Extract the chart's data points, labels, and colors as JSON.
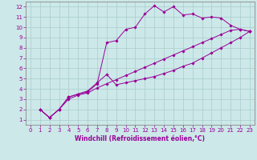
{
  "background_color": "#cce8e8",
  "grid_color": "#aacccc",
  "line_color": "#990099",
  "marker_color": "#990099",
  "xlabel": "Windchill (Refroidissement éolien,°C)",
  "xlim": [
    -0.5,
    23.5
  ],
  "ylim": [
    0.5,
    12.5
  ],
  "xticks": [
    0,
    1,
    2,
    3,
    4,
    5,
    6,
    7,
    8,
    9,
    10,
    11,
    12,
    13,
    14,
    15,
    16,
    17,
    18,
    19,
    20,
    21,
    22,
    23
  ],
  "yticks": [
    1,
    2,
    3,
    4,
    5,
    6,
    7,
    8,
    9,
    10,
    11,
    12
  ],
  "line1_x": [
    1,
    2,
    3,
    4,
    5,
    6,
    7,
    8,
    9,
    10,
    11,
    12,
    13,
    14,
    15,
    16,
    17,
    18,
    19,
    20,
    21,
    22,
    23
  ],
  "line1_y": [
    2.0,
    1.2,
    2.0,
    3.2,
    3.5,
    3.7,
    4.5,
    8.5,
    8.7,
    9.8,
    10.0,
    11.3,
    12.1,
    11.5,
    12.0,
    11.2,
    11.3,
    10.9,
    11.0,
    10.9,
    10.2,
    9.8,
    9.6
  ],
  "line2_x": [
    1,
    2,
    3,
    4,
    5,
    6,
    7,
    8,
    9,
    10,
    11,
    12,
    13,
    14,
    15,
    16,
    17,
    18,
    19,
    20,
    21,
    22,
    23
  ],
  "line2_y": [
    2.0,
    1.2,
    2.0,
    3.2,
    3.5,
    3.8,
    4.6,
    5.4,
    4.4,
    4.6,
    4.8,
    5.0,
    5.2,
    5.5,
    5.8,
    6.2,
    6.5,
    7.0,
    7.5,
    8.0,
    8.5,
    9.0,
    9.6
  ],
  "line3_x": [
    1,
    2,
    3,
    4,
    5,
    6,
    7,
    8,
    9,
    10,
    11,
    12,
    13,
    14,
    15,
    16,
    17,
    18,
    19,
    20,
    21,
    22,
    23
  ],
  "line3_y": [
    2.0,
    1.2,
    2.0,
    3.0,
    3.4,
    3.6,
    4.1,
    4.5,
    4.9,
    5.3,
    5.7,
    6.1,
    6.5,
    6.9,
    7.3,
    7.7,
    8.1,
    8.5,
    8.9,
    9.3,
    9.7,
    9.8,
    9.6
  ],
  "xlabel_fontsize": 5.5,
  "tick_fontsize": 5.0
}
